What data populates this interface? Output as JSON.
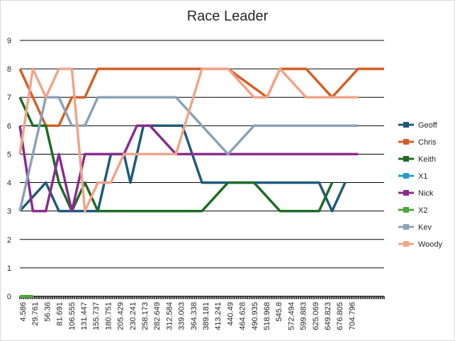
{
  "chart_data": {
    "type": "line",
    "title": "Race Leader",
    "xlabel": "",
    "ylabel": "",
    "ylim": [
      0,
      9
    ],
    "yticks": [
      0,
      1,
      2,
      3,
      4,
      5,
      6,
      7,
      8,
      9
    ],
    "grid": true,
    "legend_position": "right",
    "x_tick_labels": [
      "4.586",
      "29.761",
      "56.36",
      "81.691",
      "106.555",
      "131.447",
      "155.737",
      "180.751",
      "205.429",
      "230.241",
      "258.173",
      "282.649",
      "312.584",
      "339.003",
      "364.338",
      "389.181",
      "413.241",
      "440.49",
      "464.628",
      "490.935",
      "518.968",
      "545.8",
      "572.494",
      "599.883",
      "625.069",
      "649.823",
      "676.805",
      "704.796"
    ],
    "series": [
      {
        "name": "Geoff",
        "color": "#1f5a7a",
        "x": [
          0,
          2,
          3,
          6,
          7,
          8,
          8.5,
          9.5,
          11,
          12.5,
          14,
          16,
          18,
          20,
          22,
          23,
          24,
          25
        ],
        "y": [
          3,
          4,
          3,
          3,
          5,
          5,
          4,
          6,
          6,
          6,
          4,
          4,
          4,
          4,
          4,
          4,
          3,
          4
        ]
      },
      {
        "name": "Chris",
        "color": "#d45f23",
        "x": [
          0,
          1,
          2,
          3,
          4,
          5,
          6,
          8,
          12,
          16,
          19,
          20,
          22,
          24,
          26,
          28
        ],
        "y": [
          8,
          7,
          6,
          6,
          7,
          7,
          8,
          8,
          8,
          8,
          7,
          8,
          8,
          7,
          8,
          8
        ]
      },
      {
        "name": "Keith",
        "color": "#1e6b26",
        "x": [
          0,
          1,
          2,
          3,
          4,
          5,
          6,
          8,
          10,
          12,
          14,
          16,
          18,
          20,
          22,
          23,
          24
        ],
        "y": [
          7,
          6,
          6,
          4,
          3,
          4,
          3,
          3,
          3,
          3,
          3,
          4,
          4,
          3,
          3,
          3,
          4
        ]
      },
      {
        "name": "X1",
        "color": "#21a0c4",
        "x": [
          0,
          1
        ],
        "y": [
          0,
          0
        ]
      },
      {
        "name": "Nick",
        "color": "#8a2c8e",
        "x": [
          0,
          1,
          2,
          3,
          4,
          5,
          6,
          8,
          9,
          10,
          12,
          14,
          16,
          18,
          20,
          22,
          24,
          26
        ],
        "y": [
          6,
          3,
          3,
          5,
          3,
          5,
          5,
          5,
          6,
          6,
          5,
          5,
          5,
          5,
          5,
          5,
          5,
          5
        ]
      },
      {
        "name": "X2",
        "color": "#4ea53b",
        "x": [
          0,
          1
        ],
        "y": [
          0,
          0
        ]
      },
      {
        "name": "Kev",
        "color": "#8ba2b6",
        "x": [
          0,
          1,
          2,
          3,
          4,
          5,
          6,
          8,
          10,
          12,
          14,
          16,
          18,
          20,
          22,
          24,
          26
        ],
        "y": [
          3,
          5,
          7,
          7,
          6,
          6,
          7,
          7,
          7,
          7,
          6,
          5,
          6,
          6,
          6,
          6,
          6
        ]
      },
      {
        "name": "Woody",
        "color": "#f0a48a",
        "x": [
          0,
          1,
          2,
          3,
          4,
          5,
          6,
          7,
          8,
          12,
          14,
          16,
          18,
          19,
          20,
          22,
          24,
          26
        ],
        "y": [
          5,
          8,
          7,
          8,
          8,
          3,
          4,
          4,
          5,
          5,
          8,
          8,
          7,
          7,
          8,
          7,
          7,
          7
        ]
      }
    ]
  }
}
